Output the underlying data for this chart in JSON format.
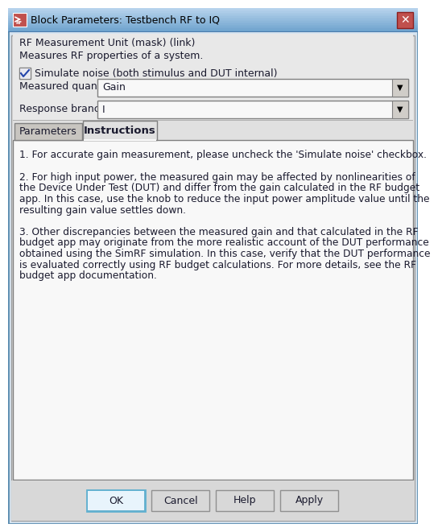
{
  "title": "Block Parameters: Testbench RF to IQ",
  "titlebar_grad_top": "#a8c4e0",
  "titlebar_grad_bot": "#6fa8d0",
  "titlebar_bg": "#5a8cb0",
  "close_btn_color": "#c0504d",
  "dialog_bg": "#e8e8e8",
  "outer_border": "#7a9ec0",
  "header_line1": "RF Measurement Unit (mask) (link)",
  "header_line2": "Measures RF properties of a system.",
  "checkbox_label": "Simulate noise (both stimulus and DUT internal)",
  "measured_quantity_label": "Measured quantity:",
  "measured_quantity_value": "Gain",
  "response_branch_label": "Response branch:",
  "response_branch_value": "I",
  "tab1_label": "Parameters",
  "tab2_label": "Instructions",
  "instruction_text_1": "1. For accurate gain measurement, please uncheck the 'Simulate noise' checkbox.",
  "instruction_text_2": "2. For high input power, the measured gain may be affected by nonlinearities of\nthe Device Under Test (DUT) and differ from the gain calculated in the RF budget\napp. In this case, use the knob to reduce the input power amplitude value until the\nresulting gain value settles down.",
  "instruction_text_3": "3. Other discrepancies between the measured gain and that calculated in the RF\nbudget app may originate from the more realistic account of the DUT performance\nobtained using the SimRF simulation. In this case, verify that the DUT performance\nis evaluated correctly using RF budget calculations. For more details, see the RF\nbudget app documentation.",
  "btn_ok": "OK",
  "btn_cancel": "Cancel",
  "btn_help": "Help",
  "btn_apply": "Apply",
  "text_color": "#1a1a2e",
  "content_bg": "#f5f5f5",
  "dropdown_bg": "#f0f0f0",
  "tab_unsel_bg": "#d0cdc8"
}
